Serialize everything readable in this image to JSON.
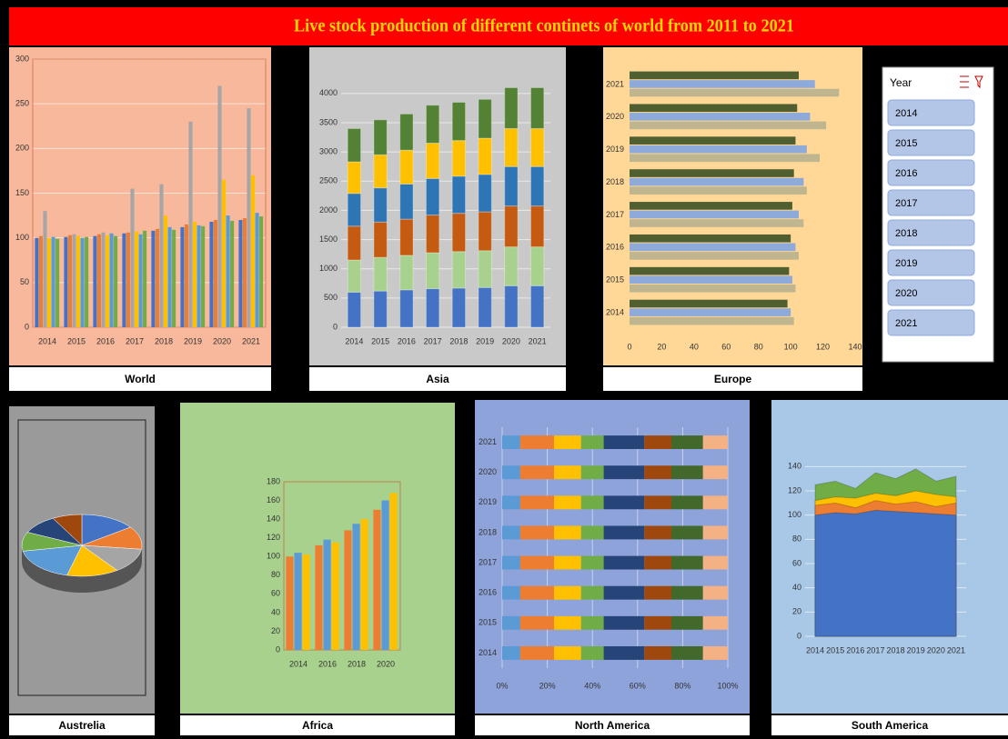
{
  "title": "Live stock production of different continets of world from 2011  to 2021",
  "chart_data": [
    {
      "type": "bar",
      "title": "World",
      "categories": [
        "2014",
        "2015",
        "2016",
        "2017",
        "2018",
        "2019",
        "2020",
        "2021"
      ],
      "series": [
        {
          "color": "#4472c4",
          "values": [
            100,
            101,
            102,
            105,
            108,
            112,
            118,
            120
          ]
        },
        {
          "color": "#ed7d31",
          "values": [
            102,
            103,
            104,
            106,
            110,
            115,
            120,
            122
          ]
        },
        {
          "color": "#a5a5a5",
          "values": [
            130,
            104,
            106,
            155,
            160,
            230,
            270,
            245
          ]
        },
        {
          "color": "#ffc000",
          "values": [
            100,
            102,
            103,
            107,
            125,
            118,
            165,
            170
          ]
        },
        {
          "color": "#5b9bd5",
          "values": [
            101,
            100,
            105,
            104,
            112,
            114,
            125,
            128
          ]
        },
        {
          "color": "#70ad47",
          "values": [
            99,
            101,
            102,
            108,
            109,
            113,
            119,
            124
          ]
        }
      ],
      "ylim": [
        0,
        300
      ],
      "yticks": [
        0,
        50,
        100,
        150,
        200,
        250,
        300
      ],
      "grid": true
    },
    {
      "type": "stacked_bar",
      "title": "Asia",
      "categories": [
        "2014",
        "2015",
        "2016",
        "2017",
        "2018",
        "2019",
        "2020",
        "2021"
      ],
      "series": [
        {
          "color": "#4472c4",
          "values": [
            600,
            620,
            640,
            660,
            670,
            680,
            710,
            710
          ]
        },
        {
          "color": "#a9d18e",
          "values": [
            550,
            575,
            590,
            615,
            625,
            630,
            665,
            665
          ]
        },
        {
          "color": "#c55a11",
          "values": [
            580,
            605,
            620,
            645,
            655,
            665,
            700,
            700
          ]
        },
        {
          "color": "#2e75b6",
          "values": [
            560,
            585,
            600,
            625,
            635,
            640,
            675,
            675
          ]
        },
        {
          "color": "#ffc000",
          "values": [
            540,
            565,
            580,
            605,
            610,
            620,
            650,
            650
          ]
        },
        {
          "color": "#548235",
          "values": [
            570,
            600,
            620,
            650,
            655,
            665,
            700,
            700
          ]
        }
      ],
      "ylim": [
        0,
        4200
      ],
      "yticks": [
        0,
        500,
        1000,
        1500,
        2000,
        2500,
        3000,
        3500,
        4000
      ],
      "grid": true
    },
    {
      "type": "barh",
      "title": "Europe",
      "categories": [
        "2014",
        "2015",
        "2016",
        "2017",
        "2018",
        "2019",
        "2020",
        "2021"
      ],
      "series": [
        {
          "color": "#4f5f2f",
          "values": [
            98,
            99,
            100,
            101,
            102,
            103,
            104,
            105
          ]
        },
        {
          "color": "#8eaadb",
          "values": [
            100,
            101,
            103,
            105,
            108,
            110,
            112,
            115
          ]
        },
        {
          "color": "#bfb58f",
          "values": [
            102,
            103,
            105,
            108,
            110,
            118,
            122,
            130
          ]
        }
      ],
      "xlim": [
        0,
        140
      ],
      "xticks": [
        0,
        20,
        40,
        60,
        80,
        100,
        120,
        140
      ],
      "grid": false
    },
    {
      "type": "pie",
      "title": "Austrelia",
      "values": [
        15,
        12,
        13,
        14,
        18,
        10,
        10,
        8
      ],
      "colors": [
        "#4472c4",
        "#ed7d31",
        "#a5a5a5",
        "#ffc000",
        "#5b9bd5",
        "#70ad47",
        "#264478",
        "#9e480e"
      ]
    },
    {
      "type": "bar",
      "title": "Africa",
      "categories": [
        "2014",
        "2016",
        "2018",
        "2020"
      ],
      "series": [
        {
          "color": "#ed7d31",
          "values": [
            100,
            112,
            128,
            150
          ]
        },
        {
          "color": "#5b9bd5",
          "values": [
            104,
            118,
            135,
            160
          ]
        },
        {
          "color": "#ffc000",
          "values": [
            102,
            115,
            140,
            168
          ]
        }
      ],
      "ylim": [
        0,
        180
      ],
      "yticks": [
        0,
        20,
        40,
        60,
        80,
        100,
        120,
        140,
        160,
        180
      ],
      "grid": false
    },
    {
      "type": "stacked_barh",
      "title": "North America",
      "categories": [
        "2014",
        "2015",
        "2016",
        "2017",
        "2018",
        "2019",
        "2020",
        "2021"
      ],
      "series": [
        {
          "color": "#5b9bd5",
          "values": [
            8,
            8,
            8,
            8,
            8,
            8,
            8,
            8
          ]
        },
        {
          "color": "#ed7d31",
          "values": [
            15,
            15,
            15,
            15,
            15,
            15,
            15,
            15
          ]
        },
        {
          "color": "#ffc000",
          "values": [
            12,
            12,
            12,
            12,
            12,
            12,
            12,
            12
          ]
        },
        {
          "color": "#70ad47",
          "values": [
            10,
            10,
            10,
            10,
            10,
            10,
            10,
            10
          ]
        },
        {
          "color": "#264478",
          "values": [
            18,
            18,
            18,
            18,
            18,
            18,
            18,
            18
          ]
        },
        {
          "color": "#9e480e",
          "values": [
            12,
            12,
            12,
            12,
            12,
            12,
            12,
            12
          ]
        },
        {
          "color": "#43682b",
          "values": [
            14,
            14,
            14,
            14,
            14,
            14,
            14,
            14
          ]
        },
        {
          "color": "#f4b183",
          "values": [
            11,
            11,
            11,
            11,
            11,
            11,
            11,
            11
          ]
        }
      ],
      "xlim": [
        0,
        100
      ],
      "xticks": [
        {
          "value": 0,
          "label": "0%"
        },
        {
          "value": 20,
          "label": "20%"
        },
        {
          "value": 40,
          "label": "40%"
        },
        {
          "value": 60,
          "label": "60%"
        },
        {
          "value": 80,
          "label": "80%"
        },
        {
          "value": 100,
          "label": "100%"
        }
      ],
      "grid": true
    },
    {
      "type": "area",
      "title": "South America",
      "categories": [
        "2014",
        "2015",
        "2016",
        "2017",
        "2018",
        "2019",
        "2020",
        "2021"
      ],
      "series": [
        {
          "color": "#4472c4",
          "values": [
            100,
            102,
            101,
            104,
            103,
            102,
            101,
            100
          ]
        },
        {
          "color": "#ed7d31",
          "values": [
            108,
            110,
            106,
            112,
            109,
            111,
            107,
            110
          ]
        },
        {
          "color": "#ffc000",
          "values": [
            112,
            115,
            114,
            118,
            116,
            120,
            117,
            115
          ]
        },
        {
          "color": "#70ad47",
          "values": [
            125,
            128,
            122,
            135,
            130,
            138,
            128,
            132
          ]
        }
      ],
      "ylim": [
        0,
        150
      ],
      "yticks": [
        0,
        20,
        40,
        60,
        80,
        100,
        120,
        140
      ],
      "grid": true
    }
  ],
  "slicer": {
    "title": "Year",
    "items": [
      "2014",
      "2015",
      "2016",
      "2017",
      "2018",
      "2019",
      "2020",
      "2021"
    ]
  }
}
